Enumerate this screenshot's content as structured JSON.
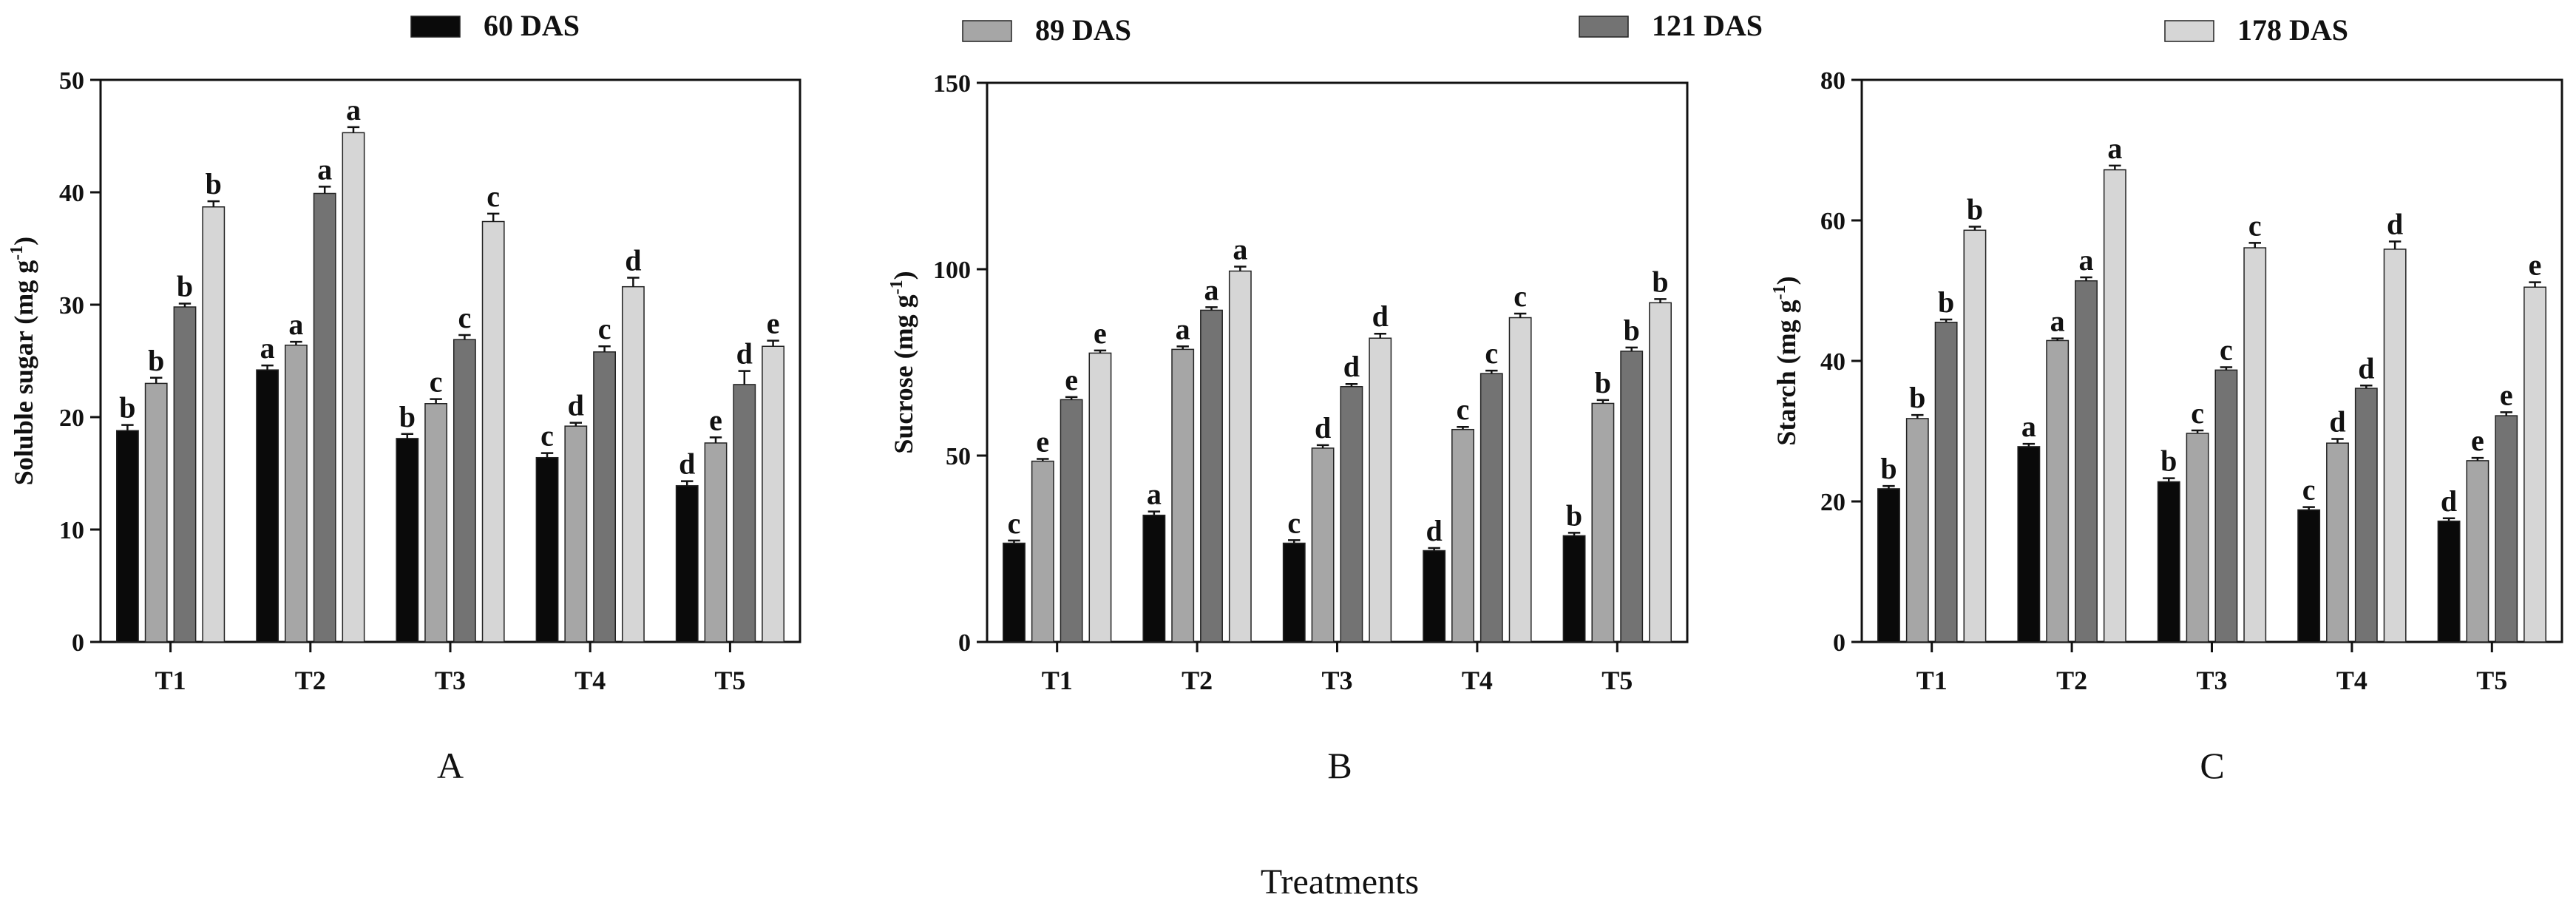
{
  "figure": {
    "x_common_label": "Treatments",
    "panel_letters": [
      "A",
      "B",
      "C"
    ]
  },
  "legend": [
    {
      "label": "60 DAS",
      "color": "#0a0a0a"
    },
    {
      "label": "89 DAS",
      "color": "#a6a6a6"
    },
    {
      "label": "121 DAS",
      "color": "#737373"
    },
    {
      "label": "178 DAS",
      "color": "#d6d6d6"
    }
  ],
  "chart_data": [
    {
      "type": "bar",
      "panel": "A",
      "ylabel_main": "Soluble sugar (mg g",
      "ylabel_sup": "-1",
      "ylabel_close": ")",
      "ylim": [
        0,
        50
      ],
      "yticks": [
        0,
        10,
        20,
        30,
        40,
        50
      ],
      "categories": [
        "T1",
        "T2",
        "T3",
        "T4",
        "T5"
      ],
      "series": [
        {
          "name": "60 DAS",
          "values": [
            18.8,
            24.2,
            18.1,
            16.4,
            13.9
          ],
          "errors": [
            0.5,
            0.4,
            0.4,
            0.4,
            0.4
          ],
          "letters": [
            "b",
            "a",
            "b",
            "c",
            "d"
          ]
        },
        {
          "name": "89 DAS",
          "values": [
            23.0,
            26.4,
            21.2,
            19.2,
            17.7
          ],
          "errors": [
            0.5,
            0.3,
            0.4,
            0.3,
            0.5
          ],
          "letters": [
            "b",
            "a",
            "c",
            "d",
            "e"
          ]
        },
        {
          "name": "121 DAS",
          "values": [
            29.8,
            39.9,
            26.9,
            25.8,
            22.9
          ],
          "errors": [
            0.3,
            0.6,
            0.4,
            0.5,
            1.2
          ],
          "letters": [
            "b",
            "a",
            "c",
            "c",
            "d"
          ]
        },
        {
          "name": "178 DAS",
          "values": [
            38.7,
            45.3,
            37.4,
            31.6,
            26.3
          ],
          "errors": [
            0.5,
            0.5,
            0.7,
            0.8,
            0.5
          ],
          "letters": [
            "b",
            "a",
            "c",
            "d",
            "e"
          ]
        }
      ]
    },
    {
      "type": "bar",
      "panel": "B",
      "ylabel_main": "Sucrose (mg g",
      "ylabel_sup": "-1",
      "ylabel_close": ")",
      "ylim": [
        0,
        150
      ],
      "yticks": [
        0,
        50,
        100,
        150
      ],
      "categories": [
        "T1",
        "T2",
        "T3",
        "T4",
        "T5"
      ],
      "series": [
        {
          "name": "60 DAS",
          "values": [
            26.5,
            34.0,
            26.5,
            24.5,
            28.5
          ],
          "errors": [
            0.7,
            1.0,
            0.8,
            0.7,
            0.8
          ],
          "letters": [
            "c",
            "a",
            "c",
            "d",
            "b"
          ]
        },
        {
          "name": "89 DAS",
          "values": [
            48.5,
            78.5,
            52.0,
            57.0,
            64.0
          ],
          "errors": [
            0.6,
            0.8,
            0.8,
            0.7,
            0.9
          ],
          "letters": [
            "e",
            "a",
            "d",
            "c",
            "b"
          ]
        },
        {
          "name": "121 DAS",
          "values": [
            65.0,
            89.0,
            68.5,
            72.0,
            78.0
          ],
          "errors": [
            0.7,
            0.8,
            0.7,
            0.8,
            1.0
          ],
          "letters": [
            "e",
            "a",
            "d",
            "c",
            "b"
          ]
        },
        {
          "name": "178 DAS",
          "values": [
            77.5,
            99.5,
            81.5,
            87.0,
            91.0
          ],
          "errors": [
            0.7,
            1.2,
            1.2,
            1.1,
            1.0
          ],
          "letters": [
            "e",
            "a",
            "d",
            "c",
            "b"
          ]
        }
      ]
    },
    {
      "type": "bar",
      "panel": "C",
      "ylabel_main": "Starch (mg g",
      "ylabel_sup": "-1",
      "ylabel_close": ")",
      "ylim": [
        0,
        80
      ],
      "yticks": [
        0,
        20,
        40,
        60,
        80
      ],
      "categories": [
        "T1",
        "T2",
        "T3",
        "T4",
        "T5"
      ],
      "series": [
        {
          "name": "60 DAS",
          "values": [
            21.8,
            27.8,
            22.8,
            18.8,
            17.2
          ],
          "errors": [
            0.4,
            0.4,
            0.5,
            0.4,
            0.4
          ],
          "letters": [
            "b",
            "a",
            "b",
            "c",
            "d"
          ]
        },
        {
          "name": "89 DAS",
          "values": [
            31.8,
            42.9,
            29.7,
            28.3,
            25.8
          ],
          "errors": [
            0.5,
            0.3,
            0.4,
            0.6,
            0.4
          ],
          "letters": [
            "b",
            "a",
            "c",
            "d",
            "e"
          ]
        },
        {
          "name": "121 DAS",
          "values": [
            45.5,
            51.4,
            38.7,
            36.1,
            32.2
          ],
          "errors": [
            0.4,
            0.5,
            0.4,
            0.4,
            0.5
          ],
          "letters": [
            "b",
            "a",
            "c",
            "d",
            "e"
          ]
        },
        {
          "name": "178 DAS",
          "values": [
            58.6,
            67.2,
            56.1,
            55.9,
            50.5
          ],
          "errors": [
            0.5,
            0.6,
            0.7,
            1.1,
            0.7
          ],
          "letters": [
            "b",
            "a",
            "c",
            "d",
            "e"
          ]
        }
      ]
    }
  ]
}
